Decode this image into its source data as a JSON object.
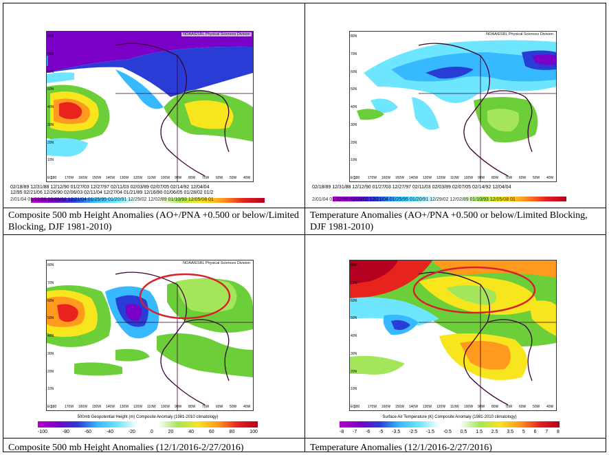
{
  "credit": "NOAA/ESRL Physical Sciences Division",
  "lat_labels": [
    "80N",
    "70N",
    "60N",
    "50N",
    "40N",
    "30N",
    "20N",
    "10N",
    "EQ"
  ],
  "lon_labels": [
    "180",
    "170W",
    "160W",
    "150W",
    "140W",
    "130W",
    "120W",
    "110W",
    "100W",
    "90W",
    "80W",
    "70W",
    "60W",
    "50W",
    "40W"
  ],
  "panels": {
    "tl": {
      "caption": "Composite 500 mb Height Anomalies (AO+/PNA +0.500 or below/Limited Blocking, DJF 1981-2010)",
      "dates_1": "02/18/89 12/31/88 12/12/90 01/27/03 12/27/97 02/11/03 02/03/89 02/07/05 02/14/92 12/04/04",
      "dates_2": "12/95 02/21/06 12/26/90 02/06/03 02/11/04 12/27/04 01/21/89 12/16/90 01/06/05 01/28/02 01/2",
      "dates_3": "2/01/04 01/22/96 02/05/02 12/21/04 01/25/95 01/20/91 12/29/02 12/02/89 01/10/93 12/05/08 01"
    },
    "tr": {
      "caption": "Temperature Anomalies (AO+/PNA +0.500 or below/Limited Blocking, DJF 1981-2010)",
      "dates_1": "02/18/89 12/31/88 12/12/90 01/27/03 12/27/97 02/11/03 02/03/89 02/07/05 02/14/92 12/04/04",
      "dates_2": "2/01/04 01/22/96 02/05/02 12/21/04 01/25/95 01/20/91 12/29/02 12/02/89 01/10/93 12/05/08 01"
    },
    "bl": {
      "caption": "Composite 500 mb Height Anomalies (12/1/2016-2/27/2016)",
      "bar_label": "500mb Geopotential Height (m) Composite Anomaly (1981-2010 climatology)",
      "ticks": [
        "-100",
        "-80",
        "-60",
        "-40",
        "-20",
        "0",
        "20",
        "40",
        "60",
        "80",
        "100"
      ]
    },
    "br": {
      "caption": "Temperature Anomalies (12/1/2016-2/27/2016)",
      "bar_label": "Surface Air Temperature (K) Composite Anomaly (1981-2010 climatology)",
      "ticks": [
        "-8",
        "-7",
        "-6",
        "-5",
        "-3.5",
        "-2.5",
        "-1.5",
        "-0.5",
        "0.5",
        "1.5",
        "2.5",
        "3.5",
        "5",
        "6",
        "7",
        "8"
      ]
    }
  },
  "colors": {
    "purple": "#7a00c8",
    "blue": "#2a3cd6",
    "lightblue": "#37b9ff",
    "cyan": "#6ee6ff",
    "green": "#6ccf3a",
    "lightgreen": "#a4e65a",
    "yellow": "#f7e61e",
    "orange": "#ff9a1e",
    "red": "#e8231e",
    "darkred": "#b4001e",
    "circle": "#d8202a"
  }
}
